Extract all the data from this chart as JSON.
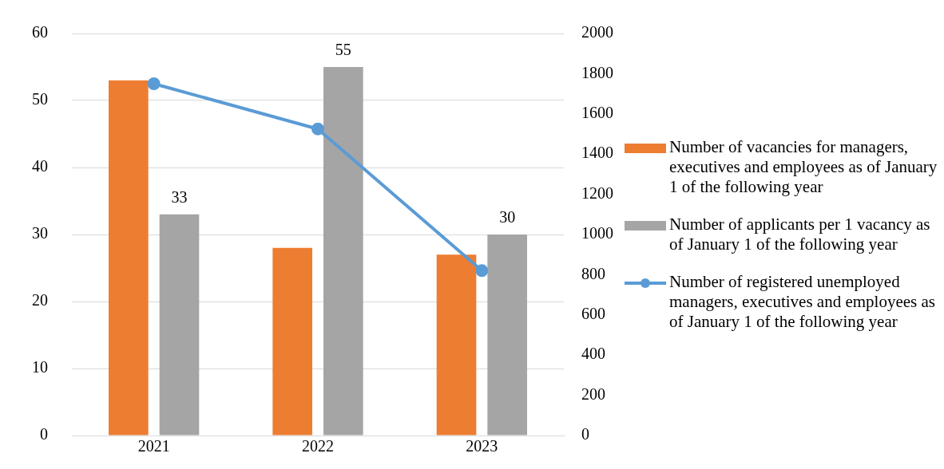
{
  "chart_data": {
    "type": "bar",
    "categories": [
      "2021",
      "2022",
      "2023"
    ],
    "series": [
      {
        "name": "Number of vacancies for managers, executives and employees as of January 1 of the following year",
        "color": "#ed7d31",
        "values": [
          53,
          28,
          27
        ]
      },
      {
        "name": "Number of applicants per 1 vacancy as of January 1 of the following year",
        "color": "#a5a5a5",
        "values": [
          33,
          55,
          30
        ],
        "value_labels": [
          "33",
          "55",
          "30"
        ]
      },
      {
        "name": "Number of registered unemployed managers, executives and employees as of January 1 of the following year",
        "type": "line",
        "axis": "y2",
        "color": "#5b9bd5",
        "values": [
          1750,
          1525,
          820
        ]
      }
    ],
    "ylim": [
      0,
      60
    ],
    "yticks": [
      0,
      10,
      20,
      30,
      40,
      50,
      60
    ],
    "y2lim": [
      0,
      2000
    ],
    "y2ticks": [
      0,
      200,
      400,
      600,
      800,
      1000,
      1200,
      1400,
      1600,
      1800,
      2000
    ],
    "grid": "y",
    "legend": "right",
    "marker": "circle"
  }
}
